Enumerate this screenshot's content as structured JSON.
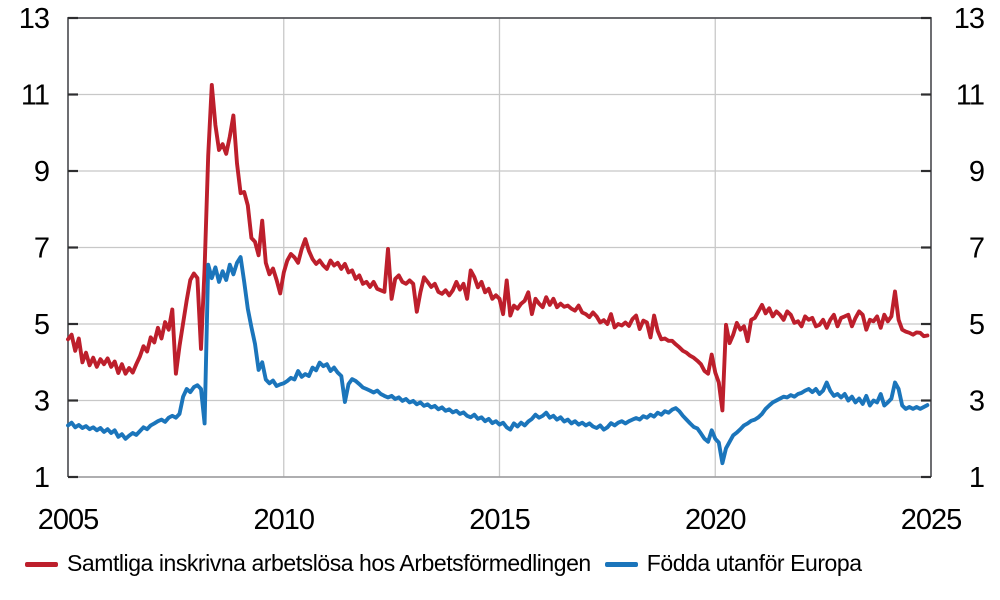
{
  "figure": {
    "background": "#ffffff"
  },
  "colors": {
    "grid": "#c8c8c8",
    "axis_border": "#545559",
    "axis_border_bottom": "#a2a2a4",
    "tick": "#2d2d2f",
    "label": "#000000",
    "series_red": "#bd1f2c",
    "series_blue": "#1b75bb"
  },
  "legend": {
    "items": [
      {
        "label": "Samtliga inskrivna arbetslösa hos Arbetsförmedlingen",
        "color": "#bd1f2c"
      },
      {
        "label": "Födda utanför Europa",
        "color": "#1b75bb"
      }
    ]
  },
  "chart_data": {
    "type": "line",
    "title": "",
    "xlabel": "",
    "ylabel": "",
    "x_start_year": 2005,
    "points_per_year": 12,
    "xlim": [
      2005,
      2025
    ],
    "ylim": [
      1,
      13
    ],
    "y_ticks": [
      1,
      3,
      5,
      7,
      9,
      11,
      13
    ],
    "x_ticks": [
      2005,
      2010,
      2015,
      2020,
      2025
    ],
    "grid_y_values": [
      3,
      5,
      7,
      9,
      11
    ],
    "grid_x_values": [
      2010,
      2015,
      2020
    ],
    "grid": true,
    "legend_position": "bottom-left",
    "series": [
      {
        "name": "Samtliga inskrivna arbetslösa hos Arbetsförmedlingen",
        "color": "#bd1f2c",
        "values": [
          4.6,
          4.72,
          4.3,
          4.62,
          4.0,
          4.25,
          3.92,
          4.12,
          3.88,
          4.08,
          3.95,
          4.1,
          3.88,
          4.02,
          3.72,
          3.95,
          3.7,
          3.85,
          3.73,
          3.95,
          4.15,
          4.42,
          4.28,
          4.65,
          4.52,
          4.9,
          4.62,
          5.05,
          4.85,
          5.38,
          3.7,
          4.42,
          5.02,
          5.62,
          6.15,
          6.32,
          6.2,
          4.35,
          6.45,
          9.4,
          11.25,
          10.2,
          9.55,
          9.7,
          9.45,
          9.9,
          10.45,
          9.2,
          8.42,
          8.45,
          8.1,
          7.25,
          7.15,
          6.8,
          7.7,
          6.6,
          6.3,
          6.45,
          6.15,
          5.8,
          6.35,
          6.66,
          6.83,
          6.74,
          6.6,
          6.96,
          7.22,
          6.91,
          6.7,
          6.57,
          6.66,
          6.53,
          6.44,
          6.66,
          6.53,
          6.6,
          6.44,
          6.57,
          6.35,
          6.4,
          6.18,
          6.27,
          6.05,
          6.1,
          5.97,
          6.1,
          5.92,
          5.88,
          5.84,
          6.96,
          5.66,
          6.18,
          6.27,
          6.1,
          6.05,
          6.14,
          6.05,
          5.32,
          5.83,
          6.22,
          6.1,
          5.97,
          6.05,
          5.84,
          5.79,
          5.88,
          5.75,
          5.88,
          6.1,
          5.9,
          6.05,
          5.66,
          6.4,
          6.23,
          5.96,
          6.1,
          5.83,
          5.92,
          5.66,
          5.75,
          5.66,
          5.26,
          6.14,
          5.22,
          5.48,
          5.4,
          5.53,
          5.61,
          5.83,
          5.26,
          5.66,
          5.53,
          5.44,
          5.7,
          5.5,
          5.66,
          5.44,
          5.53,
          5.45,
          5.48,
          5.4,
          5.35,
          5.48,
          5.3,
          5.26,
          5.18,
          5.3,
          5.2,
          5.04,
          5.1,
          5.0,
          5.26,
          4.91,
          5.0,
          4.96,
          5.04,
          4.95,
          5.13,
          5.22,
          4.87,
          5.09,
          5.04,
          4.65,
          5.22,
          4.82,
          4.6,
          4.62,
          4.56,
          4.56,
          4.47,
          4.39,
          4.3,
          4.25,
          4.17,
          4.12,
          4.04,
          3.95,
          3.77,
          3.7,
          4.2,
          3.73,
          3.47,
          2.74,
          4.98,
          4.5,
          4.72,
          5.03,
          4.85,
          4.94,
          4.55,
          5.11,
          5.16,
          5.33,
          5.5,
          5.28,
          5.41,
          5.2,
          5.33,
          5.24,
          5.11,
          5.33,
          5.24,
          5.03,
          5.07,
          4.94,
          5.2,
          5.11,
          5.16,
          4.94,
          4.98,
          5.11,
          4.9,
          5.11,
          5.24,
          4.94,
          5.16,
          5.2,
          5.24,
          4.94,
          5.16,
          5.33,
          5.24,
          4.85,
          5.11,
          5.07,
          5.2,
          4.9,
          5.24,
          5.07,
          5.2,
          5.85,
          5.11,
          4.85,
          4.8,
          4.77,
          4.72,
          4.78,
          4.77,
          4.68,
          4.7
        ]
      },
      {
        "name": "Födda utanför Europa",
        "color": "#1b75bb",
        "values": [
          2.35,
          2.42,
          2.3,
          2.36,
          2.28,
          2.33,
          2.25,
          2.3,
          2.22,
          2.28,
          2.18,
          2.25,
          2.15,
          2.22,
          2.05,
          2.12,
          2.0,
          2.08,
          2.15,
          2.1,
          2.2,
          2.3,
          2.25,
          2.35,
          2.4,
          2.46,
          2.5,
          2.44,
          2.55,
          2.6,
          2.55,
          2.65,
          3.1,
          3.3,
          3.22,
          3.35,
          3.4,
          3.3,
          2.4,
          6.55,
          6.2,
          6.48,
          6.1,
          6.38,
          6.15,
          6.55,
          6.3,
          6.6,
          6.75,
          6.1,
          5.4,
          4.92,
          4.48,
          3.8,
          4.0,
          3.55,
          3.45,
          3.52,
          3.38,
          3.42,
          3.45,
          3.51,
          3.59,
          3.55,
          3.77,
          3.62,
          3.69,
          3.64,
          3.86,
          3.79,
          3.99,
          3.9,
          3.95,
          3.77,
          3.86,
          3.73,
          3.64,
          2.96,
          3.43,
          3.56,
          3.51,
          3.43,
          3.34,
          3.3,
          3.26,
          3.21,
          3.26,
          3.17,
          3.12,
          3.08,
          3.12,
          3.04,
          3.08,
          2.99,
          3.04,
          2.95,
          2.99,
          2.9,
          2.95,
          2.86,
          2.9,
          2.82,
          2.86,
          2.77,
          2.82,
          2.73,
          2.77,
          2.69,
          2.73,
          2.65,
          2.69,
          2.6,
          2.56,
          2.63,
          2.52,
          2.56,
          2.46,
          2.52,
          2.41,
          2.46,
          2.37,
          2.42,
          2.3,
          2.24,
          2.4,
          2.32,
          2.42,
          2.35,
          2.45,
          2.52,
          2.63,
          2.55,
          2.6,
          2.68,
          2.55,
          2.6,
          2.5,
          2.56,
          2.45,
          2.5,
          2.4,
          2.46,
          2.37,
          2.42,
          2.35,
          2.4,
          2.32,
          2.28,
          2.35,
          2.24,
          2.3,
          2.41,
          2.35,
          2.42,
          2.46,
          2.4,
          2.46,
          2.5,
          2.54,
          2.5,
          2.59,
          2.55,
          2.63,
          2.58,
          2.68,
          2.63,
          2.72,
          2.68,
          2.76,
          2.8,
          2.72,
          2.6,
          2.5,
          2.4,
          2.31,
          2.27,
          2.14,
          2.0,
          1.92,
          2.22,
          2.0,
          1.9,
          1.36,
          1.75,
          1.92,
          2.09,
          2.16,
          2.25,
          2.35,
          2.4,
          2.47,
          2.5,
          2.56,
          2.65,
          2.78,
          2.87,
          2.95,
          3.0,
          3.05,
          3.1,
          3.08,
          3.14,
          3.1,
          3.17,
          3.2,
          3.26,
          3.3,
          3.22,
          3.3,
          3.17,
          3.26,
          3.47,
          3.25,
          3.12,
          3.17,
          3.08,
          3.17,
          3.0,
          3.1,
          2.95,
          3.05,
          2.91,
          3.12,
          2.87,
          3.0,
          2.95,
          3.17,
          2.87,
          2.95,
          3.05,
          3.47,
          3.3,
          2.87,
          2.78,
          2.83,
          2.78,
          2.83,
          2.78,
          2.83,
          2.88
        ]
      }
    ]
  }
}
